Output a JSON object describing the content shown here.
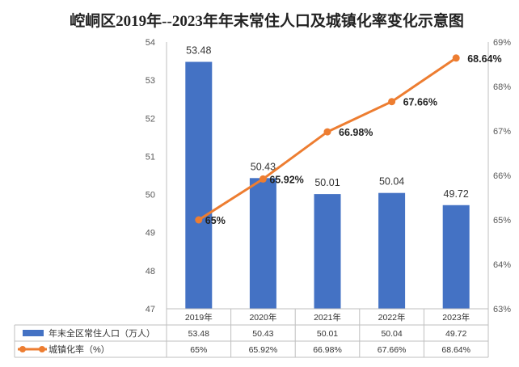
{
  "chart_data": {
    "type": "bar+line",
    "title": "崆峒区2019年--2023年年末常住人口及城镇化率变化示意图",
    "categories": [
      "2019年",
      "2020年",
      "2021年",
      "2022年",
      "2023年"
    ],
    "series": [
      {
        "name": "年末全区常住人口（万人）",
        "type": "bar",
        "axis": "left",
        "color": "#4472C4",
        "values": [
          53.48,
          50.43,
          50.01,
          50.04,
          49.72
        ],
        "labels": [
          "53.48",
          "50.43",
          "50.01",
          "50.04",
          "49.72"
        ]
      },
      {
        "name": "城镇化率（%）",
        "type": "line",
        "axis": "right",
        "color": "#ED7D31",
        "values": [
          65,
          65.92,
          66.98,
          67.66,
          68.64
        ],
        "labels": [
          "65%",
          "65.92%",
          "66.98%",
          "67.66%",
          "68.64%"
        ]
      }
    ],
    "y_left": {
      "min": 47,
      "max": 54,
      "step": 1,
      "ticks": [
        "47",
        "48",
        "49",
        "50",
        "51",
        "52",
        "53",
        "54"
      ]
    },
    "y_right": {
      "min": 63,
      "max": 69,
      "step": 1,
      "ticks": [
        "63%",
        "64%",
        "65%",
        "66%",
        "67%",
        "68%",
        "69%"
      ]
    },
    "data_table": true
  }
}
